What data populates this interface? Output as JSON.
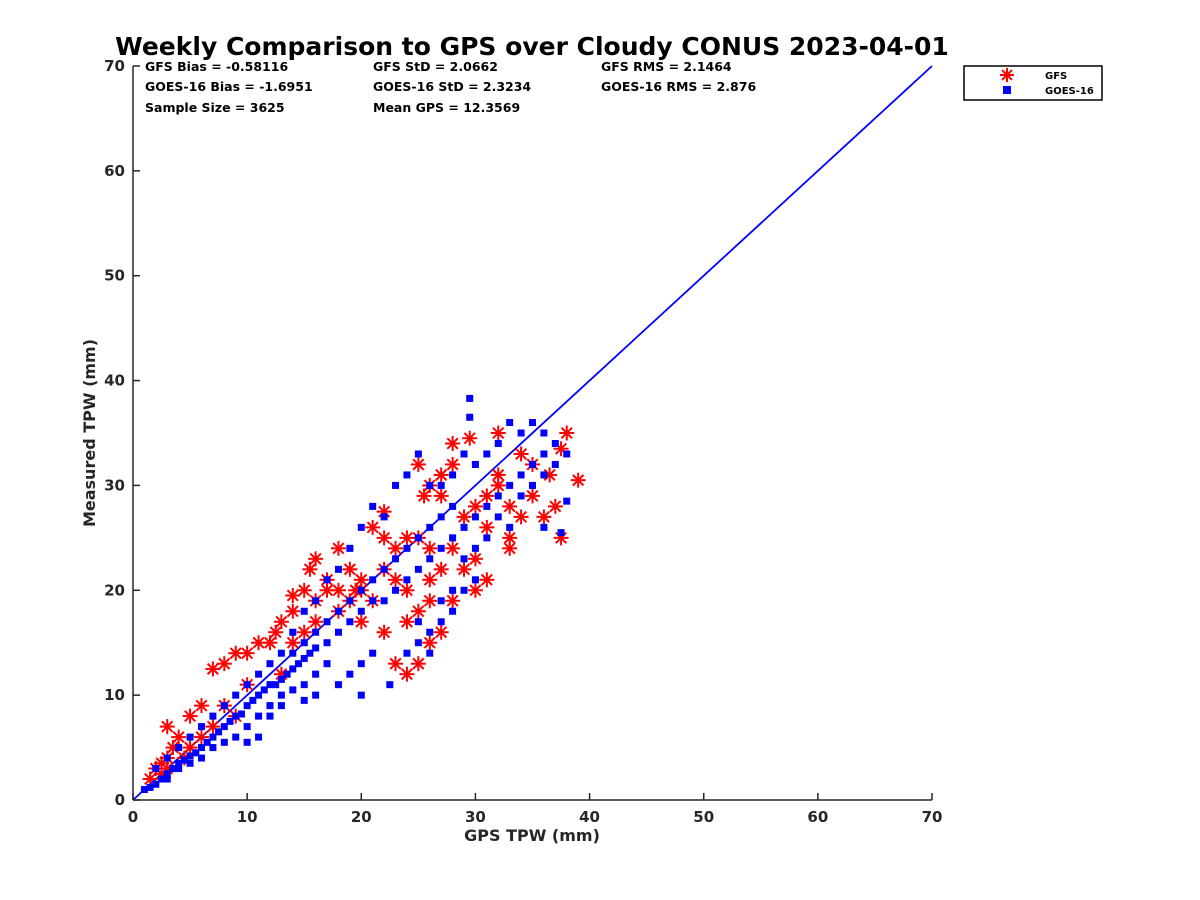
{
  "chart_data": {
    "type": "scatter",
    "title": "Weekly Comparison to GPS over Cloudy CONUS 2023-04-01",
    "xlabel": "GPS TPW (mm)",
    "ylabel": "Measured TPW (mm)",
    "xlim": [
      0,
      70
    ],
    "ylim": [
      0,
      70
    ],
    "xticks": [
      "0",
      "10",
      "20",
      "30",
      "40",
      "50",
      "60",
      "70"
    ],
    "yticks": [
      "0",
      "10",
      "20",
      "30",
      "40",
      "50",
      "60",
      "70"
    ],
    "grid": false,
    "legend_position": "top-right-outside",
    "reference_line": {
      "x": [
        0,
        70
      ],
      "y": [
        0,
        70
      ],
      "color": "#0000ff"
    },
    "stats": [
      [
        "GFS Bias = -0.58116",
        "GFS StD = 2.0662",
        "GFS RMS = 2.1464"
      ],
      [
        "GOES-16 Bias = -1.6951",
        "GOES-16 StD = 2.3234",
        "GOES-16 RMS = 2.876"
      ],
      [
        "Sample Size = 3625",
        "Mean GPS = 12.3569",
        ""
      ]
    ],
    "series": [
      {
        "name": "GFS",
        "marker": "asterisk",
        "color": "#ff0000",
        "points": [
          [
            1.5,
            2
          ],
          [
            2,
            3
          ],
          [
            2.5,
            3.5
          ],
          [
            3,
            4
          ],
          [
            3.5,
            5
          ],
          [
            3,
            7
          ],
          [
            4,
            6
          ],
          [
            5,
            8
          ],
          [
            6,
            9
          ],
          [
            7,
            12.5
          ],
          [
            8,
            13
          ],
          [
            9,
            14
          ],
          [
            10,
            14
          ],
          [
            11,
            15
          ],
          [
            12,
            15
          ],
          [
            12.5,
            16
          ],
          [
            13,
            17
          ],
          [
            14,
            18
          ],
          [
            14,
            19.5
          ],
          [
            15,
            20
          ],
          [
            15.5,
            22
          ],
          [
            16,
            23
          ],
          [
            17,
            21
          ],
          [
            18,
            24
          ],
          [
            19,
            22
          ],
          [
            19.5,
            20
          ],
          [
            20,
            21
          ],
          [
            21,
            26
          ],
          [
            22,
            25
          ],
          [
            22,
            27.5
          ],
          [
            23,
            21
          ],
          [
            24,
            20
          ],
          [
            25,
            32
          ],
          [
            25.5,
            29
          ],
          [
            26,
            30
          ],
          [
            27,
            31
          ],
          [
            27,
            22
          ],
          [
            28,
            32
          ],
          [
            28,
            24
          ],
          [
            29,
            27
          ],
          [
            29.5,
            34.5
          ],
          [
            30,
            20
          ],
          [
            30,
            28
          ],
          [
            31,
            21
          ],
          [
            31,
            26
          ],
          [
            32,
            35
          ],
          [
            32,
            30
          ],
          [
            33,
            24
          ],
          [
            33,
            25
          ],
          [
            34,
            27
          ],
          [
            34,
            33
          ],
          [
            35,
            29
          ],
          [
            35,
            32
          ],
          [
            36,
            27
          ],
          [
            36.5,
            31
          ],
          [
            37,
            28
          ],
          [
            37.5,
            33.5
          ],
          [
            37.5,
            25
          ],
          [
            38,
            35
          ],
          [
            39,
            30.5
          ],
          [
            25,
            13
          ],
          [
            26,
            15
          ],
          [
            27,
            16
          ],
          [
            24,
            12
          ],
          [
            23,
            13
          ],
          [
            26,
            19
          ],
          [
            20,
            17
          ],
          [
            18,
            20
          ],
          [
            16,
            19
          ],
          [
            22,
            16
          ],
          [
            24,
            17
          ],
          [
            25,
            25
          ],
          [
            26,
            24
          ],
          [
            28,
            19
          ],
          [
            29,
            22
          ],
          [
            30,
            23
          ],
          [
            31,
            29
          ],
          [
            32,
            31
          ],
          [
            33,
            28
          ],
          [
            28,
            34
          ],
          [
            27,
            29
          ],
          [
            26,
            21
          ],
          [
            25,
            18
          ],
          [
            17,
            20
          ],
          [
            10,
            11
          ],
          [
            9,
            8
          ],
          [
            8,
            9
          ],
          [
            6,
            6
          ],
          [
            7,
            7
          ],
          [
            5,
            5
          ],
          [
            4.5,
            4
          ],
          [
            3,
            3
          ],
          [
            2.5,
            2.5
          ],
          [
            13,
            12
          ],
          [
            14,
            15
          ],
          [
            15,
            16
          ],
          [
            16,
            17
          ],
          [
            18,
            18
          ],
          [
            19,
            19
          ],
          [
            20,
            20
          ],
          [
            21,
            19
          ],
          [
            22,
            22
          ],
          [
            23,
            24
          ],
          [
            24,
            25
          ]
        ]
      },
      {
        "name": "GOES-16",
        "marker": "square",
        "color": "#0000ff",
        "points": [
          [
            1,
            1
          ],
          [
            1.5,
            1.2
          ],
          [
            2,
            1.5
          ],
          [
            2.5,
            2
          ],
          [
            3,
            2.5
          ],
          [
            3.5,
            3
          ],
          [
            4,
            3.5
          ],
          [
            4.5,
            3.8
          ],
          [
            5,
            4.2
          ],
          [
            5.5,
            4.5
          ],
          [
            6,
            5
          ],
          [
            6.5,
            5.5
          ],
          [
            7,
            6
          ],
          [
            7.5,
            6.5
          ],
          [
            8,
            7
          ],
          [
            8.5,
            7.5
          ],
          [
            9,
            8
          ],
          [
            9.5,
            8.2
          ],
          [
            10,
            9
          ],
          [
            10.5,
            9.5
          ],
          [
            11,
            10
          ],
          [
            11.5,
            10.5
          ],
          [
            12,
            11
          ],
          [
            12.5,
            11
          ],
          [
            13,
            11.5
          ],
          [
            13.5,
            12
          ],
          [
            14,
            12.5
          ],
          [
            14.5,
            13
          ],
          [
            15,
            13.5
          ],
          [
            15.5,
            14
          ],
          [
            16,
            14.5
          ],
          [
            17,
            15
          ],
          [
            18,
            16
          ],
          [
            19,
            17
          ],
          [
            20,
            18
          ],
          [
            21,
            19
          ],
          [
            22,
            19
          ],
          [
            23,
            20
          ],
          [
            24,
            21
          ],
          [
            25,
            22
          ],
          [
            26,
            23
          ],
          [
            27,
            24
          ],
          [
            28,
            25
          ],
          [
            29,
            26
          ],
          [
            30,
            27
          ],
          [
            31,
            28
          ],
          [
            32,
            29
          ],
          [
            33,
            30
          ],
          [
            34,
            31
          ],
          [
            35,
            32
          ],
          [
            36,
            33
          ],
          [
            37,
            34
          ],
          [
            38,
            33
          ],
          [
            36,
            35
          ],
          [
            35,
            36
          ],
          [
            34,
            35
          ],
          [
            33,
            36
          ],
          [
            32,
            34
          ],
          [
            31,
            33
          ],
          [
            30,
            32
          ],
          [
            29,
            33
          ],
          [
            28,
            31
          ],
          [
            27,
            30
          ],
          [
            26,
            30
          ],
          [
            25,
            33
          ],
          [
            24,
            31
          ],
          [
            23,
            30
          ],
          [
            22,
            27
          ],
          [
            21,
            28
          ],
          [
            20,
            26
          ],
          [
            19,
            24
          ],
          [
            18,
            22
          ],
          [
            17,
            21
          ],
          [
            16,
            19
          ],
          [
            15,
            18
          ],
          [
            14,
            16
          ],
          [
            13,
            14
          ],
          [
            12,
            13
          ],
          [
            11,
            12
          ],
          [
            10,
            11
          ],
          [
            9,
            10
          ],
          [
            8,
            9
          ],
          [
            7,
            8
          ],
          [
            6,
            7
          ],
          [
            5,
            6
          ],
          [
            4,
            5
          ],
          [
            3,
            4
          ],
          [
            2,
            3
          ],
          [
            29.5,
            38.3
          ],
          [
            29.5,
            36.5
          ],
          [
            38,
            28.5
          ],
          [
            37.5,
            25.5
          ],
          [
            36,
            26
          ],
          [
            22.5,
            11
          ],
          [
            20,
            10
          ],
          [
            17,
            13
          ],
          [
            16,
            12
          ],
          [
            15,
            11
          ],
          [
            14,
            10.5
          ],
          [
            13,
            10
          ],
          [
            12,
            9
          ],
          [
            11,
            8
          ],
          [
            10,
            7
          ],
          [
            9,
            6
          ],
          [
            8,
            5.5
          ],
          [
            7,
            5
          ],
          [
            6,
            4
          ],
          [
            5,
            3.5
          ],
          [
            4,
            3
          ],
          [
            3,
            2
          ],
          [
            24,
            14
          ],
          [
            25,
            15
          ],
          [
            26,
            16
          ],
          [
            27,
            17
          ],
          [
            28,
            18
          ],
          [
            29,
            20
          ],
          [
            30,
            21
          ],
          [
            26,
            14
          ],
          [
            25,
            17
          ],
          [
            27,
            19
          ],
          [
            28,
            20
          ],
          [
            29,
            23
          ],
          [
            30,
            24
          ],
          [
            31,
            25
          ],
          [
            32,
            27
          ],
          [
            33,
            26
          ],
          [
            34,
            29
          ],
          [
            35,
            30
          ],
          [
            36,
            31
          ],
          [
            37,
            32
          ],
          [
            20,
            13
          ],
          [
            21,
            14
          ],
          [
            19,
            12
          ],
          [
            18,
            11
          ],
          [
            16,
            10
          ],
          [
            12,
            8
          ],
          [
            13,
            9
          ],
          [
            15,
            9.5
          ],
          [
            10,
            5.5
          ],
          [
            11,
            6
          ],
          [
            14,
            14
          ],
          [
            15,
            15
          ],
          [
            16,
            16
          ],
          [
            17,
            17
          ],
          [
            18,
            18
          ],
          [
            19,
            19
          ],
          [
            20,
            20
          ],
          [
            21,
            21
          ],
          [
            22,
            22
          ],
          [
            23,
            23
          ],
          [
            24,
            24
          ],
          [
            25,
            25
          ],
          [
            26,
            26
          ],
          [
            27,
            27
          ],
          [
            28,
            28
          ]
        ]
      }
    ]
  }
}
